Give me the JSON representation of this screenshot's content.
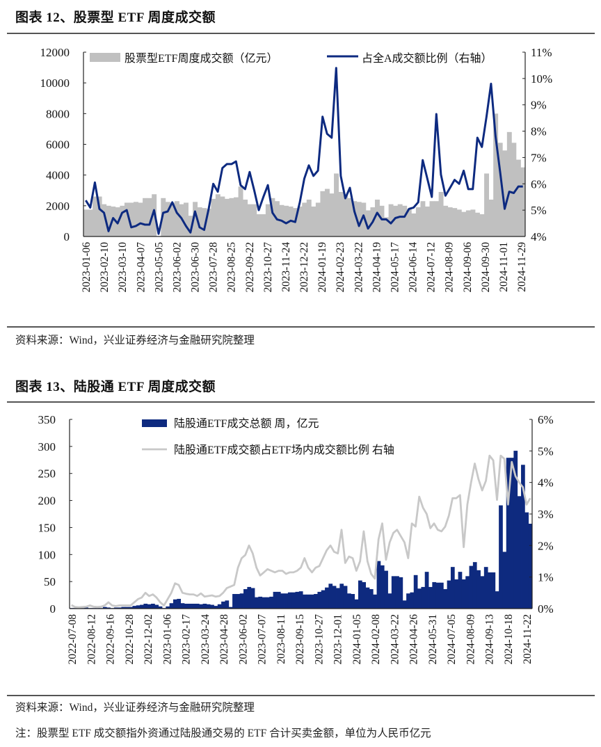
{
  "figure12": {
    "title": "图表 12、股票型 ETF 周度成交额",
    "source": "资料来源：Wind，兴业证券经济与金融研究院整理"
  },
  "figure13": {
    "title": "图表 13、陆股通 ETF 周度成交额",
    "source": "资料来源：Wind，兴业证券经济与金融研究院整理",
    "note": "注：股票型 ETF 成交额指外资通过陆股通交易的 ETF 合计买卖金额，单位为人民币亿元"
  },
  "chart_data": [
    {
      "type": "bar+line",
      "title": "",
      "xlabel": "",
      "ylabel": "",
      "ylim": [
        0,
        12000
      ],
      "yticks": [
        "0",
        "2000",
        "4000",
        "6000",
        "8000",
        "10000",
        "12000"
      ],
      "y2lim": [
        4,
        11
      ],
      "y2ticks": [
        "4%",
        "5%",
        "6%",
        "7%",
        "8%",
        "9%",
        "10%",
        "11%"
      ],
      "xticks": [
        "2023-01-06",
        "2023-02-10",
        "2023-03-10",
        "2023-04-07",
        "2023-05-05",
        "2023-06-02",
        "2023-06-30",
        "2023-07-28",
        "2023-08-25",
        "2023-09-22",
        "2023-10-27",
        "2023-11-24",
        "2023-12-22",
        "2024-01-19",
        "2024-02-23",
        "2024-03-22",
        "2024-04-19",
        "2024-05-17",
        "2024-06-14",
        "2024-07-12",
        "2024-08-09",
        "2024-09-06",
        "2024-09-30",
        "2024-11-01",
        "2024-11-29"
      ],
      "legend_position": "top",
      "bar_color": "#c0c0c0",
      "line_color": "#0d2a80",
      "series": [
        {
          "name": "股票型ETF周度成交额（亿元）",
          "kind": "bar",
          "axis": "left",
          "values": [
            1750,
            1750,
            2600,
            2600,
            2100,
            2000,
            1950,
            1900,
            2000,
            2200,
            2200,
            2250,
            2200,
            2500,
            2500,
            2750,
            0,
            2500,
            2250,
            2200,
            2300,
            2100,
            2200,
            1350,
            2250,
            1900,
            1850,
            1800,
            2450,
            2750,
            2600,
            2450,
            2500,
            2550,
            3250,
            2400,
            2100,
            2100,
            1450,
            1450,
            2100,
            2500,
            2300,
            2050,
            2000,
            1950,
            1850,
            1950,
            2200,
            2400,
            1950,
            2200,
            2950,
            3100,
            2800,
            4100,
            2900,
            2700,
            2500,
            2300,
            2250,
            2200,
            1700,
            1900,
            2400,
            2000,
            1250,
            2100,
            2000,
            2100,
            2000,
            1800,
            1500,
            1900,
            2300,
            1950,
            2300,
            2300,
            2900,
            2000,
            1900,
            1850,
            1750,
            1600,
            1700,
            1750,
            1550,
            1450,
            4100,
            2400,
            8000,
            6100,
            5600,
            6800,
            6100,
            5000,
            4500
          ]
        },
        {
          "name": "占全A成交额比例（右轴）",
          "kind": "line",
          "axis": "right",
          "unit": "%",
          "values": [
            5.37,
            5.1,
            6.05,
            5.05,
            4.9,
            4.2,
            4.7,
            4.5,
            4.9,
            5.0,
            4.35,
            4.4,
            4.5,
            4.45,
            4.45,
            5.0,
            4.1,
            4.9,
            4.95,
            5.3,
            4.9,
            4.7,
            4.4,
            4.15,
            4.95,
            4.35,
            4.25,
            5.05,
            6.0,
            5.7,
            6.6,
            6.75,
            6.75,
            6.85,
            5.95,
            5.8,
            6.45,
            5.75,
            5.0,
            5.5,
            5.95,
            4.9,
            4.65,
            4.6,
            4.5,
            4.6,
            4.55,
            5.3,
            6.2,
            6.7,
            6.3,
            6.5,
            8.55,
            7.9,
            7.75,
            10.4,
            6.3,
            5.45,
            5.85,
            4.95,
            4.4,
            4.8,
            4.3,
            4.55,
            4.9,
            4.65,
            4.65,
            4.5,
            4.7,
            4.75,
            4.75,
            5.05,
            5.1,
            5.3,
            6.9,
            6.2,
            5.5,
            8.65,
            6.35,
            5.55,
            5.85,
            6.15,
            6.0,
            6.5,
            5.8,
            5.8,
            7.75,
            7.4,
            8.55,
            9.8,
            7.8,
            6.45,
            5.05,
            5.7,
            5.65,
            5.9,
            5.9
          ]
        }
      ]
    },
    {
      "type": "bar+line",
      "title": "",
      "xlabel": "",
      "ylabel": "",
      "ylim": [
        0,
        350
      ],
      "yticks": [
        "0",
        "50",
        "100",
        "150",
        "200",
        "250",
        "300",
        "350"
      ],
      "y2lim": [
        0,
        6
      ],
      "y2ticks": [
        "0%",
        "1%",
        "2%",
        "3%",
        "4%",
        "5%",
        "6%"
      ],
      "xticks": [
        "2022-07-08",
        "2022-08-12",
        "2022-09-16",
        "2022-10-28",
        "2022-12-02",
        "2023-01-06",
        "2023-02-17",
        "2023-03-24",
        "2023-04-28",
        "2023-06-02",
        "2023-07-07",
        "2023-08-11",
        "2023-09-15",
        "2023-10-27",
        "2023-12-01",
        "2024-01-05",
        "2024-02-08",
        "2024-03-22",
        "2024-04-26",
        "2024-05-31",
        "2024-07-05",
        "2024-08-09",
        "2024-09-13",
        "2024-10-18",
        "2024-11-22"
      ],
      "legend_position": "top",
      "bar_color": "#0e2a7f",
      "line_color": "#c8c8c8",
      "series": [
        {
          "name": "陆股通ETF成交总额 周，亿元",
          "kind": "bar",
          "axis": "left",
          "values": [
            1,
            1,
            1,
            1,
            2,
            1,
            1,
            1,
            1,
            3,
            2,
            1,
            2,
            2,
            3,
            3,
            3,
            5,
            6,
            7,
            9,
            8,
            9,
            7,
            4,
            1,
            4,
            10,
            17,
            18,
            10,
            9,
            9,
            9,
            9,
            8,
            9,
            8,
            7,
            5,
            8,
            13,
            15,
            3,
            27,
            27,
            28,
            36,
            40,
            38,
            21,
            22,
            21,
            21,
            22,
            31,
            31,
            28,
            28,
            30,
            30,
            31,
            32,
            26,
            26,
            26,
            27,
            31,
            34,
            39,
            46,
            42,
            38,
            46,
            42,
            28,
            27,
            17,
            52,
            49,
            39,
            36,
            26,
            88,
            80,
            70,
            28,
            60,
            60,
            58,
            15,
            28,
            30,
            62,
            37,
            40,
            68,
            40,
            49,
            48,
            48,
            36,
            52,
            77,
            54,
            68,
            54,
            60,
            79,
            86,
            71,
            60,
            77,
            67,
            67,
            32,
            191,
            105,
            279,
            279,
            292,
            208,
            266,
            178,
            157
          ]
        },
        {
          "name": "陆股通ETF成交额占ETF场内成交额比例 右轴",
          "kind": "line",
          "axis": "right",
          "unit": "%",
          "values": [
            0.11,
            0.05,
            0.04,
            0.05,
            0.06,
            0.1,
            0.06,
            0.05,
            0.06,
            0.1,
            0.2,
            0.1,
            0.08,
            0.1,
            0.1,
            0.1,
            0.1,
            0.2,
            0.3,
            0.35,
            0.5,
            0.4,
            0.45,
            0.35,
            0.2,
            0.1,
            0.3,
            0.5,
            0.8,
            0.75,
            0.5,
            0.47,
            0.45,
            0.45,
            0.4,
            0.48,
            0.38,
            0.4,
            0.42,
            0.38,
            0.4,
            0.5,
            0.65,
            0.7,
            0.75,
            1.3,
            1.6,
            1.7,
            2.0,
            1.75,
            1.3,
            1.05,
            1.15,
            1.25,
            1.2,
            1.15,
            1.2,
            1.2,
            1.1,
            1.15,
            1.15,
            1.2,
            1.3,
            1.6,
            1.3,
            1.15,
            1.3,
            1.35,
            1.6,
            1.85,
            2.0,
            1.8,
            1.75,
            2.5,
            1.45,
            1.65,
            1.6,
            1.2,
            1.5,
            2.45,
            1.5,
            1.1,
            0.95,
            2.2,
            2.7,
            1.55,
            2.1,
            2.4,
            2.5,
            2.3,
            2.1,
            1.6,
            2.7,
            2.6,
            3.55,
            3.2,
            3.0,
            2.55,
            2.7,
            2.5,
            2.45,
            2.6,
            2.95,
            3.5,
            3.5,
            3.6,
            1.95,
            3.3,
            4.0,
            4.6,
            4.1,
            3.75,
            4.05,
            4.85,
            4.7,
            3.45,
            4.85,
            4.75,
            3.3,
            4.65,
            4.2,
            4.0,
            3.85,
            3.3,
            3.5
          ]
        }
      ]
    }
  ]
}
